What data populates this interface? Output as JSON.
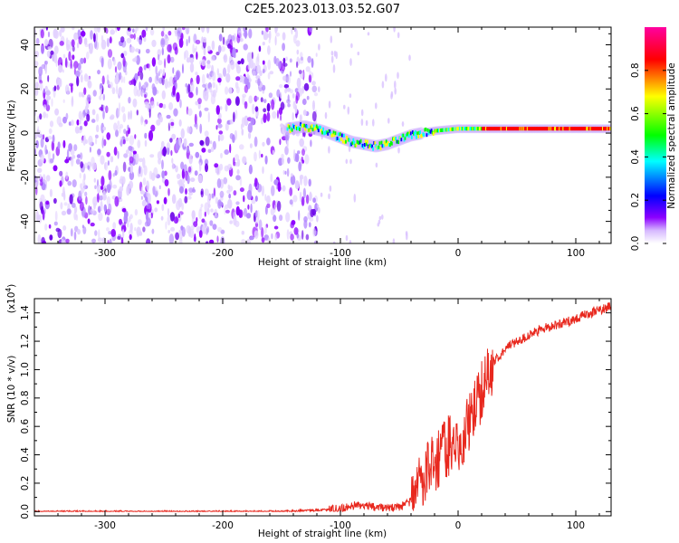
{
  "title": "C2E5.2023.013.03.52.G07",
  "colorbar": {
    "label": "Normalized spectral amplitude",
    "ticks": [
      "0.0",
      "0.2",
      "0.4",
      "0.6",
      "0.8"
    ]
  },
  "chart_data": [
    {
      "type": "heatmap",
      "xlabel": "Height of straight line (km)",
      "ylabel": "Frequency (Hz)",
      "xlim": [
        -360,
        130
      ],
      "ylim": [
        -50,
        48
      ],
      "xticks": [
        "-300",
        "-200",
        "-100",
        "0",
        "100"
      ],
      "yticks": [
        "-40",
        "-20",
        "0",
        "20",
        "40"
      ],
      "noise_region_x": [
        -360,
        -120
      ],
      "signal_track": [
        {
          "x": -145,
          "y": 2
        },
        {
          "x": -130,
          "y": 3
        },
        {
          "x": -115,
          "y": 1
        },
        {
          "x": -100,
          "y": -2
        },
        {
          "x": -90,
          "y": -4
        },
        {
          "x": -80,
          "y": -5
        },
        {
          "x": -70,
          "y": -6
        },
        {
          "x": -60,
          "y": -5
        },
        {
          "x": -50,
          "y": -3
        },
        {
          "x": -40,
          "y": -1
        },
        {
          "x": -30,
          "y": 0
        },
        {
          "x": -20,
          "y": 1
        },
        {
          "x": -10,
          "y": 1.5
        },
        {
          "x": 0,
          "y": 2
        },
        {
          "x": 20,
          "y": 2
        },
        {
          "x": 50,
          "y": 2
        },
        {
          "x": 80,
          "y": 2
        },
        {
          "x": 100,
          "y": 2
        },
        {
          "x": 130,
          "y": 2
        }
      ],
      "colormap": [
        "#ffffff",
        "#8c00ff",
        "#0000ff",
        "#00ffff",
        "#00ff00",
        "#ffff00",
        "#ff0000",
        "#ff00a0"
      ]
    },
    {
      "type": "line",
      "xlabel": "Height of straight line (km)",
      "ylabel": "SNR (10 * v/v)",
      "ylabel_exponent": "(x10",
      "ylabel_exponent_power": "4",
      "ylabel_exponent_close": ")",
      "xlim": [
        -360,
        130
      ],
      "ylim": [
        -0.03,
        1.5
      ],
      "xticks": [
        "-300",
        "-200",
        "-100",
        "0",
        "100"
      ],
      "yticks": [
        "0.0",
        "0.2",
        "0.4",
        "0.6",
        "0.8",
        "1.0",
        "1.2",
        "1.4"
      ],
      "color": "#e8281e",
      "series": [
        {
          "x": [
            -360,
            -250,
            -150,
            -120,
            -100,
            -90,
            -80,
            -70,
            -60,
            -50,
            -40,
            -35,
            -30,
            -25,
            -20,
            -15,
            -10,
            -5,
            0,
            5,
            10,
            15,
            20,
            25,
            30,
            40,
            50,
            60,
            70,
            80,
            90,
            100,
            110,
            120,
            130
          ],
          "values": [
            0.0,
            0.0,
            0.0,
            0.01,
            0.02,
            0.04,
            0.05,
            0.03,
            0.02,
            0.03,
            0.07,
            0.15,
            0.25,
            0.3,
            0.35,
            0.4,
            0.45,
            0.48,
            0.5,
            0.55,
            0.62,
            0.72,
            0.85,
            0.95,
            1.05,
            1.15,
            1.2,
            1.24,
            1.28,
            1.31,
            1.33,
            1.36,
            1.39,
            1.42,
            1.45
          ]
        }
      ]
    }
  ]
}
